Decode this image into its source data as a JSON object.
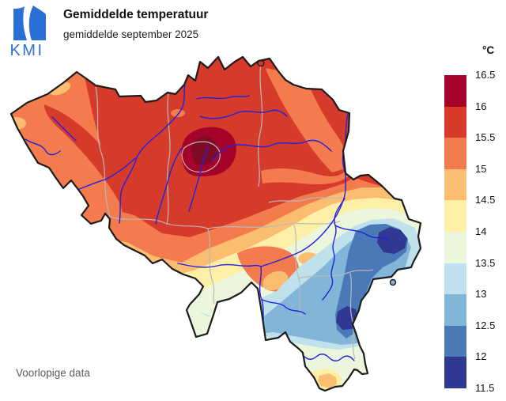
{
  "header": {
    "title": "Gemiddelde temperatuur",
    "subtitle": "gemiddelde september 2025",
    "logo_text": "KMI"
  },
  "footer": {
    "note": "Voorlopige data"
  },
  "legend": {
    "unit": "°C",
    "ticks": [
      "16.5",
      "16",
      "15.5",
      "15",
      "14.5",
      "14",
      "13.5",
      "13",
      "12.5",
      "12",
      "11.5"
    ],
    "colors": [
      "#a50329",
      "#d63a2b",
      "#f37b4d",
      "#fbbe70",
      "#feefa6",
      "#ecf6dc",
      "#bfe1ec",
      "#82b5d8",
      "#4b79b7",
      "#313893"
    ],
    "above_max_color": "#7d0b26"
  },
  "map": {
    "river_color": "#2222dd",
    "province_border_color": "#b9b9b9",
    "country_border_color": "#1c1c1c"
  },
  "logo": {
    "color": "#2a6fd6"
  }
}
